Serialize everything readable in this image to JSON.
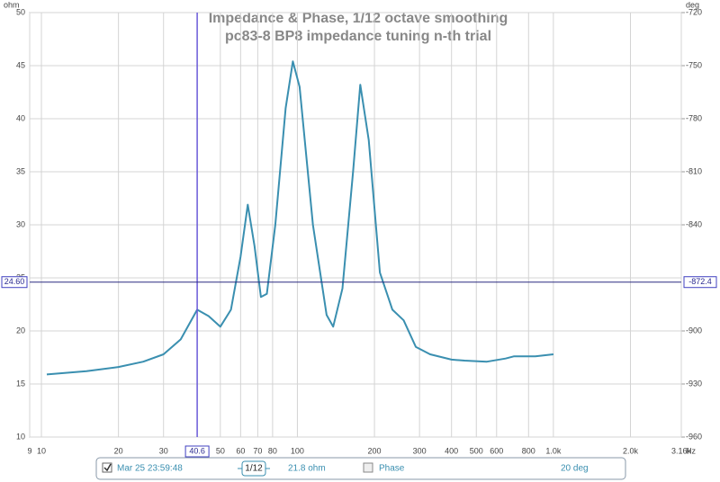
{
  "chart_data": {
    "type": "line",
    "title": "Impedance & Phase, 1/12 octave smoothing",
    "subtitle": "pc83-8 BP8 impedance tuning n-th trial",
    "x_label": "Hz",
    "y_label": "ohm",
    "y2_label": "deg",
    "log_x": true,
    "grid": true,
    "xlim": [
      9,
      3160
    ],
    "xticks": [
      9,
      10,
      20,
      30,
      50,
      60,
      70,
      80,
      100,
      200,
      300,
      400,
      500,
      600,
      800,
      {
        "value": 1000,
        "label": "1.0k"
      },
      {
        "value": 2000,
        "label": "2.0k"
      },
      {
        "value": 3160,
        "label": "3.16k"
      }
    ],
    "ylim": [
      10,
      50
    ],
    "yticks": [
      10,
      15,
      20,
      25,
      30,
      35,
      40,
      45,
      50
    ],
    "y2lim": [
      -960,
      -720
    ],
    "y2ticks": [
      -960,
      -930,
      -900,
      -840,
      -810,
      -780,
      -750,
      -720
    ],
    "x": [
      10.5,
      15,
      20,
      25,
      30,
      35,
      40.6,
      45,
      50,
      55,
      60,
      64,
      68,
      72,
      76,
      82,
      90,
      96,
      102,
      115,
      130,
      138,
      150,
      165,
      176,
      190,
      210,
      235,
      260,
      290,
      330,
      400,
      450,
      550,
      650,
      700,
      850,
      1000
    ],
    "series": [
      {
        "name": "Mar 25 23:59:48",
        "color": "#3a8fb0",
        "values": [
          15.9,
          16.2,
          16.6,
          17.1,
          17.8,
          19.2,
          22.0,
          21.4,
          20.4,
          22.0,
          27.0,
          31.9,
          28.0,
          23.2,
          23.5,
          30.0,
          41.0,
          45.4,
          43.0,
          30.0,
          21.5,
          20.4,
          24.0,
          35.0,
          43.2,
          38.0,
          25.5,
          22.0,
          21.0,
          18.5,
          17.8,
          17.3,
          17.2,
          17.1,
          17.4,
          17.6,
          17.6,
          17.8
        ]
      }
    ],
    "cursor": {
      "x": {
        "value": 40.6,
        "label": "40.6"
      },
      "y": {
        "value": 24.6,
        "label": "24.60"
      },
      "y2": -872.4
    },
    "legend": {
      "smoothing": "1/12",
      "series_value": "21.8 ohm",
      "phase_label": "Phase",
      "phase_value": "20 deg"
    }
  }
}
